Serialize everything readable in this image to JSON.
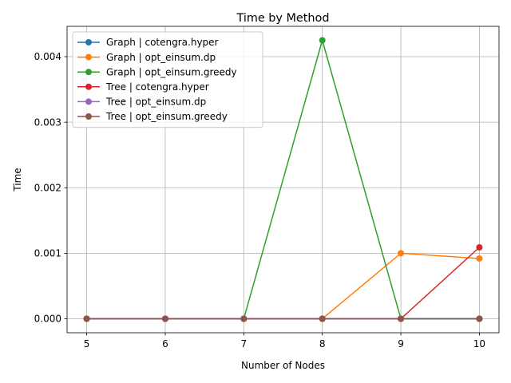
{
  "chart_data": {
    "type": "line",
    "title": "Time by Method",
    "xlabel": "Number of Nodes",
    "ylabel": "Time",
    "x": [
      5,
      6,
      7,
      8,
      9,
      10
    ],
    "xlim": [
      4.75,
      10.25
    ],
    "ylim": [
      -0.000213,
      0.004463
    ],
    "xticks": [
      "5",
      "6",
      "7",
      "8",
      "9",
      "10"
    ],
    "xtick_values": [
      5,
      6,
      7,
      8,
      9,
      10
    ],
    "yticks": [
      "0.000",
      "0.001",
      "0.002",
      "0.003",
      "0.004"
    ],
    "ytick_values": [
      0,
      0.001,
      0.002,
      0.003,
      0.004
    ],
    "grid": true,
    "legend_position": "top-left",
    "series": [
      {
        "name": "Graph | cotengra.hyper",
        "color": "#1f77b4",
        "values": [
          0,
          0,
          0,
          0,
          0,
          0
        ]
      },
      {
        "name": "Graph | opt_einsum.dp",
        "color": "#ff7f0e",
        "values": [
          0,
          0,
          0,
          0,
          0.001,
          0.00092
        ]
      },
      {
        "name": "Graph | opt_einsum.greedy",
        "color": "#2ca02c",
        "values": [
          0,
          0,
          0,
          0.00425,
          0,
          0
        ]
      },
      {
        "name": "Tree | cotengra.hyper",
        "color": "#d62728",
        "values": [
          0,
          0,
          0,
          0,
          0,
          0.00109
        ]
      },
      {
        "name": "Tree | opt_einsum.dp",
        "color": "#9467bd",
        "values": [
          0,
          0,
          0,
          0,
          0,
          0
        ]
      },
      {
        "name": "Tree | opt_einsum.greedy",
        "color": "#8c564b",
        "values": [
          0,
          0,
          0,
          0,
          0,
          0
        ]
      }
    ]
  }
}
